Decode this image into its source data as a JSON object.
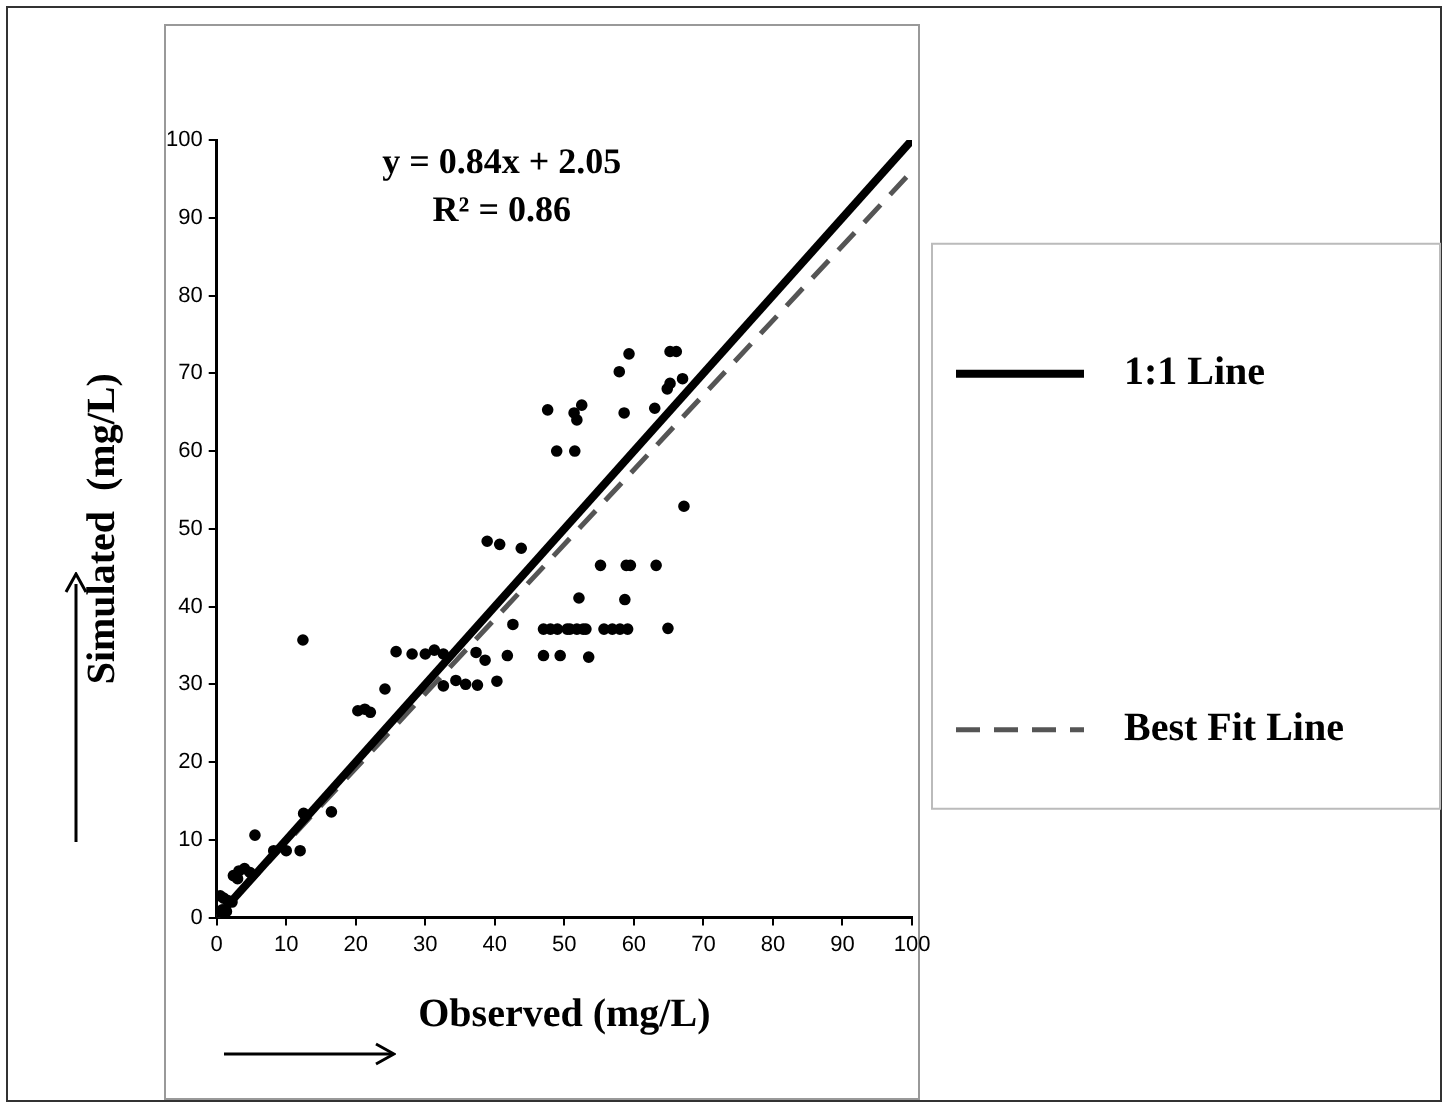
{
  "chart_data": {
    "type": "scatter",
    "xlabel": "Observed (mg/L)",
    "ylabel": "Simulated  (mg/L)",
    "annotations": [
      "y = 0.84x + 2.05",
      "R² = 0.86"
    ],
    "xlim": [
      0,
      100
    ],
    "ylim": [
      0,
      100
    ],
    "xticks": [
      0,
      10,
      20,
      30,
      40,
      50,
      60,
      70,
      80,
      90,
      100
    ],
    "yticks": [
      0,
      10,
      20,
      30,
      40,
      50,
      60,
      70,
      80,
      90,
      100
    ],
    "grid": false,
    "legend": "right",
    "marker": "circle",
    "series": [
      {
        "color": "#000000",
        "x": [
          12.4,
          59.3,
          57.9,
          65.2,
          66.1,
          64.8,
          65.2,
          67,
          47.6,
          51.4,
          51.8,
          52.5,
          58.6,
          63,
          48.9,
          51.5,
          67.2,
          38.9,
          40.7,
          43.8,
          55.2,
          58.9,
          59.5,
          63.2,
          52.1,
          58.7,
          42.6,
          47,
          48,
          49,
          50.4,
          50.8,
          51.8,
          52.7,
          53.1,
          55.7,
          56.9,
          58,
          59.1,
          64.9,
          47,
          49.4,
          53.5,
          25.8,
          28.1,
          30,
          31.3,
          32.6,
          37.3,
          38.6,
          41.8,
          32.6,
          34.4,
          35.8,
          37.5,
          40.3,
          24.2,
          20.3,
          21.3,
          22.1,
          12.5,
          16.5,
          5.5,
          8.2,
          10,
          12,
          2.4,
          3.2,
          4,
          4.8,
          3,
          0.5,
          1,
          1.6,
          2.2,
          0.8,
          1.4
        ],
        "values": [
          35.7,
          72.5,
          70.2,
          72.8,
          72.8,
          68,
          68.7,
          69.3,
          65.3,
          64.9,
          64,
          65.9,
          64.9,
          65.5,
          60,
          60,
          52.9,
          48.4,
          48,
          47.5,
          45.3,
          45.3,
          45.3,
          45.3,
          41.1,
          40.9,
          37.7,
          37.1,
          37.1,
          37.1,
          37.1,
          37.1,
          37.1,
          37.1,
          37.1,
          37.1,
          37.1,
          37.1,
          37.1,
          37.2,
          33.7,
          33.7,
          33.5,
          34.2,
          33.9,
          33.9,
          34.4,
          33.9,
          34.1,
          33.1,
          33.7,
          29.8,
          30.5,
          30,
          29.9,
          30.4,
          29.4,
          26.6,
          26.8,
          26.4,
          13.4,
          13.6,
          10.6,
          8.6,
          8.6,
          8.6,
          5.4,
          6,
          6.3,
          5.8,
          5,
          2.8,
          2.5,
          2.2,
          2,
          1,
          0.8
        ]
      },
      {
        "type": "line",
        "name": "1:1 Line",
        "color": "#000000",
        "line_style": "solid",
        "marker": "none",
        "x": [
          0,
          100
        ],
        "values": [
          0,
          100
        ]
      },
      {
        "type": "line",
        "name": "Best Fit Line",
        "color": "#555555",
        "line_style": "dashed",
        "marker": "none",
        "x": [
          0,
          100
        ],
        "values": [
          0,
          96
        ]
      }
    ]
  }
}
